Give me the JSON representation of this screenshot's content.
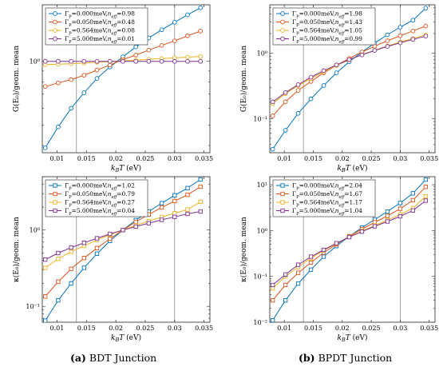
{
  "captions": [
    {
      "label": "(a)",
      "text": "BDT Junction"
    },
    {
      "label": "(b)",
      "text": "BPDT Junction"
    }
  ],
  "chart_data": [
    {
      "id": "a-top",
      "type": "line",
      "yscale": "log",
      "xlim": [
        0.0075,
        0.036
      ],
      "ylim": [
        0.37,
        1.85
      ],
      "xticks": [
        0.01,
        0.015,
        0.02,
        0.025,
        0.03,
        0.035
      ],
      "xtick_labels": [
        "0.01",
        "0.015",
        "0.02",
        "0.025",
        "0.03",
        "0.035"
      ],
      "yticks": [
        1
      ],
      "ytick_labels": [
        "10⁰"
      ],
      "xlabel": "k_BT (eV)",
      "ylabel": "G(E₀)/geom. mean",
      "vlines": [
        0.0133,
        0.03
      ],
      "marker": "circle",
      "legend_position": "top-left",
      "x": [
        0.008,
        0.0102,
        0.0124,
        0.0146,
        0.0168,
        0.019,
        0.0212,
        0.0234,
        0.0256,
        0.0278,
        0.03,
        0.0322,
        0.0344
      ],
      "series": [
        {
          "name": "Γ_P=0.000meV,n_eff=0.98",
          "color": "#0072BD",
          "values": [
            0.39,
            0.49,
            0.6,
            0.71,
            0.83,
            0.94,
            1.05,
            1.17,
            1.29,
            1.41,
            1.53,
            1.66,
            1.79
          ]
        },
        {
          "name": "Γ_P=0.050meV,n_eff=0.48",
          "color": "#D95319",
          "values": [
            0.76,
            0.79,
            0.82,
            0.86,
            0.91,
            0.96,
            1.02,
            1.07,
            1.13,
            1.19,
            1.25,
            1.32,
            1.39
          ]
        },
        {
          "name": "Γ_P=0.564meV,n_eff=0.08",
          "color": "#EDB120",
          "values": [
            0.965,
            0.969,
            0.974,
            0.981,
            0.99,
            0.997,
            1.005,
            1.013,
            1.022,
            1.03,
            1.038,
            1.046,
            1.055
          ]
        },
        {
          "name": "Γ_P=5.000meV,n_eff=0.01",
          "color": "#7E2F8E",
          "values": [
            1.0,
            1.0,
            1.0,
            1.0,
            1.0,
            1.0,
            1.0,
            1.0,
            1.0,
            1.0,
            1.0,
            1.0,
            1.0
          ]
        }
      ]
    },
    {
      "id": "b-top",
      "type": "line",
      "yscale": "log",
      "xlim": [
        0.0075,
        0.036
      ],
      "ylim": [
        0.03,
        5.5
      ],
      "xticks": [
        0.01,
        0.015,
        0.02,
        0.025,
        0.03,
        0.035
      ],
      "xtick_labels": [
        "0.01",
        "0.015",
        "0.02",
        "0.025",
        "0.03",
        "0.035"
      ],
      "yticks": [
        0.1,
        1
      ],
      "ytick_labels": [
        "10⁻¹",
        "10⁰"
      ],
      "xlabel": "k_BT (eV)",
      "ylabel": "G(E₀)/geom. mean",
      "vlines": [
        0.0133,
        0.03
      ],
      "marker": "circle",
      "legend_position": "top-left",
      "x": [
        0.008,
        0.0102,
        0.0124,
        0.0146,
        0.0168,
        0.019,
        0.0212,
        0.0234,
        0.0256,
        0.0278,
        0.03,
        0.0322,
        0.0344
      ],
      "series": [
        {
          "name": "Γ_P=0.000meV,n_eff=1.98",
          "color": "#0072BD",
          "values": [
            0.034,
            0.066,
            0.12,
            0.2,
            0.32,
            0.5,
            0.74,
            1.04,
            1.43,
            1.91,
            2.5,
            3.2,
            4.9
          ]
        },
        {
          "name": "Γ_P=0.050meV,n_eff=1.43",
          "color": "#D95319",
          "values": [
            0.11,
            0.18,
            0.27,
            0.37,
            0.5,
            0.65,
            0.83,
            1.04,
            1.28,
            1.55,
            1.85,
            2.19,
            2.6
          ]
        },
        {
          "name": "Γ_P=0.564meV,n_eff=1.05",
          "color": "#EDB120",
          "values": [
            0.17,
            0.24,
            0.32,
            0.41,
            0.52,
            0.65,
            0.79,
            0.95,
            1.11,
            1.29,
            1.48,
            1.68,
            1.9
          ]
        },
        {
          "name": "Γ_P=5.000meV,n_eff=0.99",
          "color": "#7E2F8E",
          "values": [
            0.18,
            0.25,
            0.33,
            0.43,
            0.54,
            0.66,
            0.8,
            0.94,
            1.1,
            1.27,
            1.44,
            1.63,
            1.82
          ]
        }
      ]
    },
    {
      "id": "a-bottom",
      "type": "line",
      "yscale": "log",
      "xlim": [
        0.0075,
        0.036
      ],
      "ylim": [
        0.062,
        5.0
      ],
      "xticks": [
        0.01,
        0.015,
        0.02,
        0.025,
        0.03,
        0.035
      ],
      "xtick_labels": [
        "0.01",
        "0.015",
        "0.02",
        "0.025",
        "0.03",
        "0.035"
      ],
      "yticks": [
        0.1,
        1
      ],
      "ytick_labels": [
        "10⁻¹",
        "10⁰"
      ],
      "xlabel": "k_BT (eV)",
      "ylabel": "κ(E₀)/geom. mean",
      "vlines": [
        0.0133,
        0.03
      ],
      "marker": "square",
      "legend_position": "top-left",
      "x": [
        0.008,
        0.0102,
        0.0124,
        0.0146,
        0.0168,
        0.019,
        0.0212,
        0.0234,
        0.0256,
        0.0278,
        0.03,
        0.0322,
        0.0344
      ],
      "series": [
        {
          "name": "Γ_P=0.000meV,n_eff=1.02",
          "color": "#0072BD",
          "values": [
            0.065,
            0.12,
            0.2,
            0.32,
            0.49,
            0.72,
            1.0,
            1.35,
            1.75,
            2.25,
            2.85,
            3.55,
            4.6
          ]
        },
        {
          "name": "Γ_P=0.050meV,n_eff=0.79",
          "color": "#D95319",
          "values": [
            0.135,
            0.21,
            0.31,
            0.43,
            0.58,
            0.77,
            1.0,
            1.28,
            1.6,
            1.98,
            2.4,
            2.9,
            3.7
          ]
        },
        {
          "name": "Γ_P=0.564meV,n_eff=0.27",
          "color": "#EDB120",
          "values": [
            0.32,
            0.42,
            0.52,
            0.62,
            0.74,
            0.87,
            1.0,
            1.15,
            1.31,
            1.48,
            1.66,
            1.86,
            2.35
          ]
        },
        {
          "name": "Γ_P=5.000meV,n_eff=0.04",
          "color": "#7E2F8E",
          "values": [
            0.41,
            0.5,
            0.59,
            0.68,
            0.78,
            0.89,
            1.0,
            1.11,
            1.23,
            1.36,
            1.49,
            1.63,
            1.75
          ]
        }
      ]
    },
    {
      "id": "b-bottom",
      "type": "line",
      "yscale": "log",
      "xlim": [
        0.0075,
        0.036
      ],
      "ylim": [
        0.01,
        15
      ],
      "xticks": [
        0.01,
        0.015,
        0.02,
        0.025,
        0.03,
        0.035
      ],
      "xtick_labels": [
        "0.01",
        "0.015",
        "0.02",
        "0.025",
        "0.03",
        "0.035"
      ],
      "yticks": [
        0.01,
        0.1,
        1,
        10
      ],
      "ytick_labels": [
        "10⁻²",
        "10⁻¹",
        "10⁰",
        "10¹"
      ],
      "xlabel": "k_BT (eV)",
      "ylabel": "κ(E₀)/geom. mean",
      "vlines": [
        0.0133,
        0.03
      ],
      "marker": "square",
      "legend_position": "top-left",
      "x": [
        0.008,
        0.0102,
        0.0124,
        0.0146,
        0.0168,
        0.019,
        0.0212,
        0.0234,
        0.0256,
        0.0278,
        0.03,
        0.0322,
        0.0344
      ],
      "series": [
        {
          "name": "Γ_P=0.000meV,n_eff=2.04",
          "color": "#0072BD",
          "values": [
            0.011,
            0.03,
            0.07,
            0.14,
            0.27,
            0.46,
            0.75,
            1.16,
            1.75,
            2.6,
            4.0,
            6.5,
            13.0
          ]
        },
        {
          "name": "Γ_P=0.050meV,n_eff=1.67",
          "color": "#D95319",
          "values": [
            0.03,
            0.065,
            0.12,
            0.2,
            0.33,
            0.5,
            0.75,
            1.08,
            1.52,
            2.1,
            3.0,
            4.6,
            9.0
          ]
        },
        {
          "name": "Γ_P=0.564meV,n_eff=1.17",
          "color": "#EDB120",
          "values": [
            0.055,
            0.1,
            0.16,
            0.25,
            0.37,
            0.52,
            0.73,
            0.98,
            1.3,
            1.7,
            2.25,
            3.1,
            5.6
          ]
        },
        {
          "name": "Γ_P=5.000meV,n_eff=1.04",
          "color": "#7E2F8E",
          "values": [
            0.065,
            0.11,
            0.18,
            0.27,
            0.38,
            0.53,
            0.72,
            0.95,
            1.24,
            1.58,
            2.05,
            2.75,
            4.5
          ]
        }
      ]
    }
  ]
}
